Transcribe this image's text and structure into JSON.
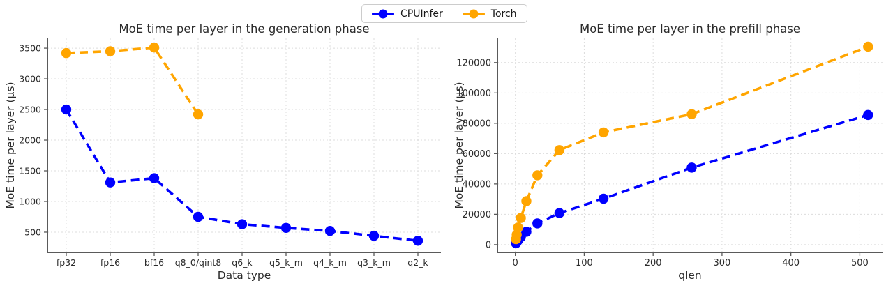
{
  "figure": {
    "background": "#ffffff",
    "text_color": "#2b2b2b",
    "grid_color": "#dcdcdc",
    "spine_color": "#5a5a5a"
  },
  "legend": {
    "position": "figure-top-center",
    "items": [
      {
        "label": "CPUInfer",
        "color": "#0000ff",
        "marker": "circle-icon"
      },
      {
        "label": "Torch",
        "color": "#ffa500",
        "marker": "circle-icon"
      }
    ]
  },
  "chart_data": [
    {
      "type": "line",
      "title": "MoE time per layer in the generation phase",
      "xlabel": "Data type",
      "ylabel": "MoE time per layer (μs)",
      "x_type": "categorical",
      "categories": [
        "fp32",
        "fp16",
        "bf16",
        "q8_0/qint8",
        "q6_k",
        "q5_k_m",
        "q4_k_m",
        "q3_k_m",
        "q2_k"
      ],
      "series": [
        {
          "name": "CPUInfer",
          "color": "#0000ff",
          "linestyle": "dashed",
          "marker": "circle",
          "values": [
            2500,
            1310,
            1380,
            750,
            630,
            570,
            520,
            440,
            360
          ]
        },
        {
          "name": "Torch",
          "color": "#ffa500",
          "linestyle": "dashed",
          "marker": "circle",
          "values": [
            3420,
            3450,
            3510,
            2420,
            null,
            null,
            null,
            null,
            null
          ]
        }
      ],
      "yticks": [
        500,
        1000,
        1500,
        2000,
        2500,
        3000,
        3500
      ],
      "ylim": [
        170,
        3660
      ],
      "grid": true
    },
    {
      "type": "line",
      "title": "MoE time per layer in the prefill phase",
      "xlabel": "qlen",
      "ylabel": "MoE time per layer (μs)",
      "x_type": "linear",
      "x": [
        1,
        2,
        4,
        8,
        16,
        32,
        64,
        128,
        256,
        512
      ],
      "series": [
        {
          "name": "CPUInfer",
          "color": "#0000ff",
          "linestyle": "dashed",
          "marker": "circle",
          "values": [
            900,
            1600,
            2800,
            5000,
            8500,
            14000,
            20800,
            30300,
            50800,
            85500
          ]
        },
        {
          "name": "Torch",
          "color": "#ffa500",
          "linestyle": "dashed",
          "marker": "circle",
          "values": [
            3600,
            6600,
            11300,
            17600,
            28700,
            45700,
            62300,
            74000,
            86000,
            130500
          ]
        }
      ],
      "xticks": [
        0,
        100,
        200,
        300,
        400,
        500
      ],
      "yticks": [
        0,
        20000,
        40000,
        60000,
        80000,
        100000,
        120000
      ],
      "xlim": [
        -26,
        534
      ],
      "ylim": [
        -5100,
        136000
      ],
      "grid": true
    }
  ]
}
